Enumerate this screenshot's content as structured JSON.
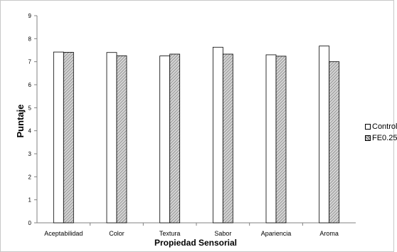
{
  "chart_data": {
    "type": "bar",
    "xlabel": "Propiedad Sensorial",
    "ylabel": "Puntaje",
    "categories": [
      "Aceptabilidad",
      "Color",
      "Textura",
      "Sabor",
      "Apariencia",
      "Aroma"
    ],
    "series": [
      {
        "name": "Control",
        "values": [
          7.42,
          7.4,
          7.25,
          7.63,
          7.3,
          7.68
        ],
        "fill": "#ffffff"
      },
      {
        "name": "FE0.25",
        "values": [
          7.41,
          7.26,
          7.33,
          7.33,
          7.24,
          7.0
        ],
        "fill": "hatched-gray"
      }
    ],
    "ylim": [
      0,
      9
    ],
    "yticks": [
      "0",
      "1",
      "2",
      "3",
      "4",
      "5",
      "6",
      "7",
      "8",
      "9"
    ],
    "grid": false,
    "legend_position": "right"
  }
}
